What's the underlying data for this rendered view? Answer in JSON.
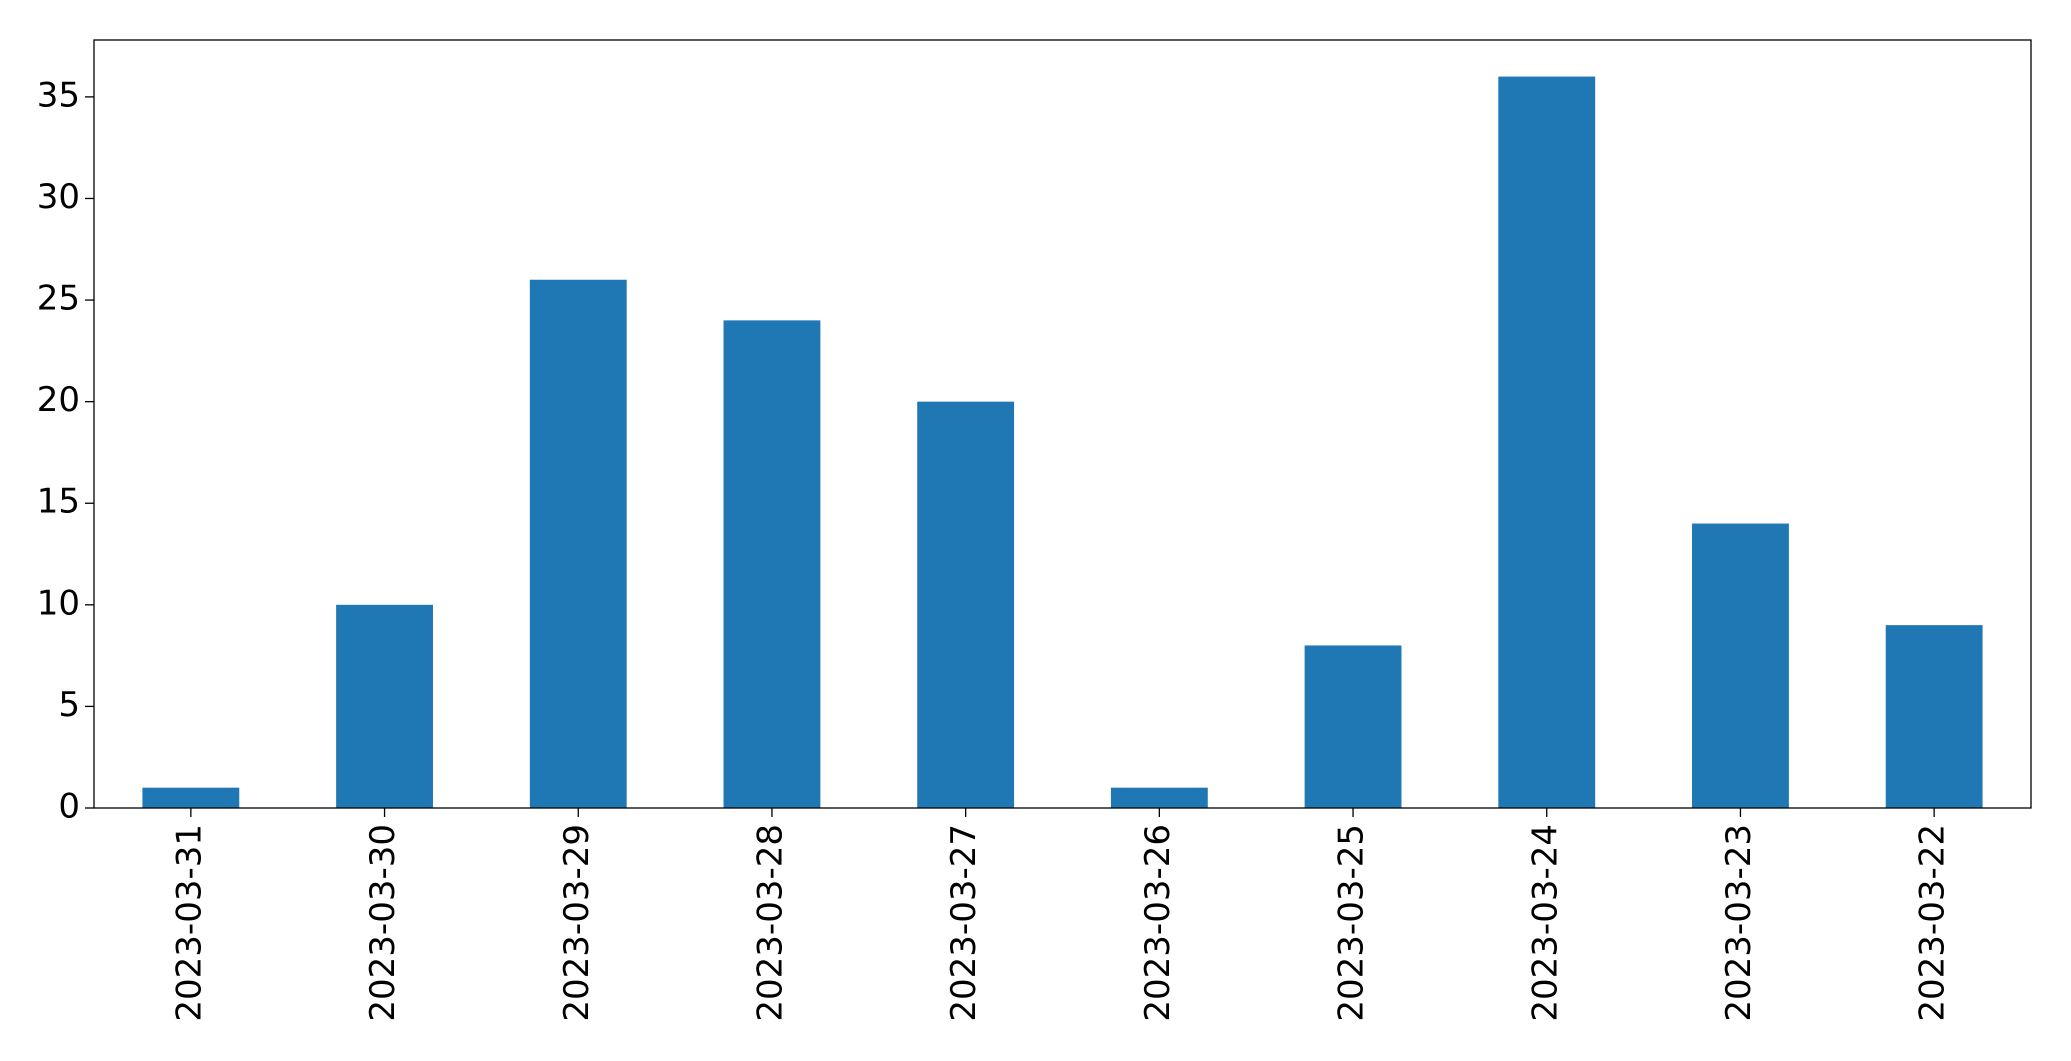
{
  "chart_data": {
    "type": "bar",
    "categories": [
      "2023-03-31",
      "2023-03-30",
      "2023-03-29",
      "2023-03-28",
      "2023-03-27",
      "2023-03-26",
      "2023-03-25",
      "2023-03-24",
      "2023-03-23",
      "2023-03-22"
    ],
    "values": [
      1,
      10,
      26,
      24,
      20,
      1,
      8,
      36,
      14,
      9
    ],
    "color": "#1f77b4",
    "ylim": [
      0,
      37.8
    ],
    "yticks": [
      0,
      5,
      10,
      15,
      20,
      25,
      30,
      35
    ],
    "grid": false
  }
}
